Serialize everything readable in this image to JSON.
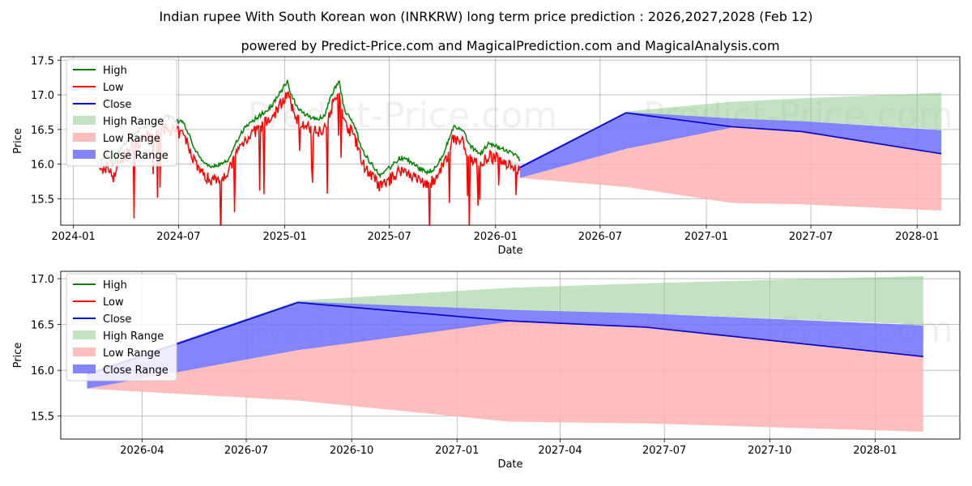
{
  "title": "Indian rupee With South Korean won (INRKRW) long term price prediction : 2026,2027,2028 (Feb 12)",
  "subtitle": "powered by Predict-Price.com and MagicalPrediction.com and MagicalAnalysis.com",
  "watermark": "Predict-Price.com",
  "colors": {
    "high": "#008000",
    "low": "#ff0000",
    "close": "#0000cc",
    "high_range": "#8fca8f",
    "low_range": "#ffb3b3",
    "close_range": "#6f6fff"
  },
  "chart_data": [
    {
      "type": "line",
      "name": "history-and-forecast",
      "xlabel": "Date",
      "ylabel": "Price",
      "x_ticks": [
        "2024-01",
        "2024-07",
        "2025-01",
        "2025-07",
        "2026-01",
        "2026-07",
        "2027-01",
        "2027-07",
        "2028-01"
      ],
      "y_ticks": [
        "15.5",
        "16.0",
        "16.5",
        "17.0",
        "17.5"
      ],
      "xlim": [
        "2023-12-10",
        "2028-03-15"
      ],
      "ylim": [
        15.12,
        17.55
      ],
      "grid": true,
      "legend": [
        "High",
        "Low",
        "Close",
        "High Range",
        "Low Range",
        "Close Range"
      ],
      "legend_position": "upper-left",
      "history_anchors": {
        "dates": [
          "2024-02-15",
          "2024-03-01",
          "2024-03-10",
          "2024-03-20",
          "2024-04-10",
          "2024-05-01",
          "2024-05-20",
          "2024-06-10",
          "2024-06-25",
          "2024-07-10",
          "2024-07-25",
          "2024-08-10",
          "2024-08-25",
          "2024-09-10",
          "2024-09-25",
          "2024-10-10",
          "2024-10-25",
          "2024-11-10",
          "2024-11-25",
          "2024-12-10",
          "2024-12-25",
          "2025-01-05",
          "2025-01-15",
          "2025-01-25",
          "2025-02-10",
          "2025-02-25",
          "2025-03-10",
          "2025-03-25",
          "2025-04-05",
          "2025-04-15",
          "2025-05-01",
          "2025-05-15",
          "2025-06-01",
          "2025-06-15",
          "2025-07-01",
          "2025-07-20",
          "2025-08-05",
          "2025-08-20",
          "2025-09-05",
          "2025-09-20",
          "2025-10-05",
          "2025-10-20",
          "2025-11-05",
          "2025-11-20",
          "2025-12-05",
          "2025-12-20",
          "2026-01-05",
          "2026-01-20",
          "2026-02-05",
          "2026-02-12"
        ],
        "values": [
          15.95,
          16.05,
          15.9,
          16.1,
          16.3,
          16.45,
          16.5,
          16.6,
          16.55,
          16.5,
          16.2,
          15.95,
          15.85,
          15.9,
          15.95,
          16.25,
          16.45,
          16.55,
          16.65,
          16.75,
          16.95,
          17.1,
          16.85,
          16.7,
          16.6,
          16.55,
          16.6,
          16.95,
          17.1,
          16.65,
          16.5,
          16.1,
          15.9,
          15.75,
          15.85,
          16.0,
          15.95,
          15.85,
          15.8,
          15.85,
          16.1,
          16.45,
          16.4,
          16.15,
          16.05,
          16.2,
          16.15,
          16.1,
          16.05,
          15.95
        ]
      }
    },
    {
      "type": "area",
      "name": "forecast-zoom",
      "xlabel": "Date",
      "ylabel": "Price",
      "x_ticks": [
        "2026-04",
        "2026-07",
        "2026-10",
        "2027-01",
        "2027-04",
        "2027-07",
        "2027-10",
        "2028-01"
      ],
      "y_ticks": [
        "15.5",
        "16.0",
        "16.5",
        "17.0"
      ],
      "xlim": [
        "2026-01-20",
        "2028-03-15"
      ],
      "ylim": [
        15.25,
        17.08
      ],
      "grid": true,
      "legend": [
        "High",
        "Low",
        "Close",
        "High Range",
        "Low Range",
        "Close Range"
      ],
      "legend_position": "upper-left",
      "forecast": {
        "dates": [
          "2026-02-12",
          "2026-08-15",
          "2027-02-15",
          "2027-06-15",
          "2028-02-12"
        ],
        "close": [
          15.95,
          16.74,
          16.54,
          16.47,
          16.15
        ],
        "high_range_upper": [
          15.97,
          16.76,
          16.9,
          16.95,
          17.03
        ],
        "high_range_lower": [
          15.95,
          16.74,
          16.65,
          16.62,
          16.5
        ],
        "low_range_upper": [
          15.8,
          16.22,
          16.55,
          16.5,
          16.15
        ],
        "low_range_lower": [
          15.8,
          15.67,
          15.44,
          15.42,
          15.33
        ],
        "close_range_upper": [
          15.97,
          16.75,
          16.66,
          16.62,
          16.49
        ],
        "close_range_lower": [
          15.8,
          16.22,
          16.53,
          16.47,
          16.15
        ]
      }
    }
  ]
}
